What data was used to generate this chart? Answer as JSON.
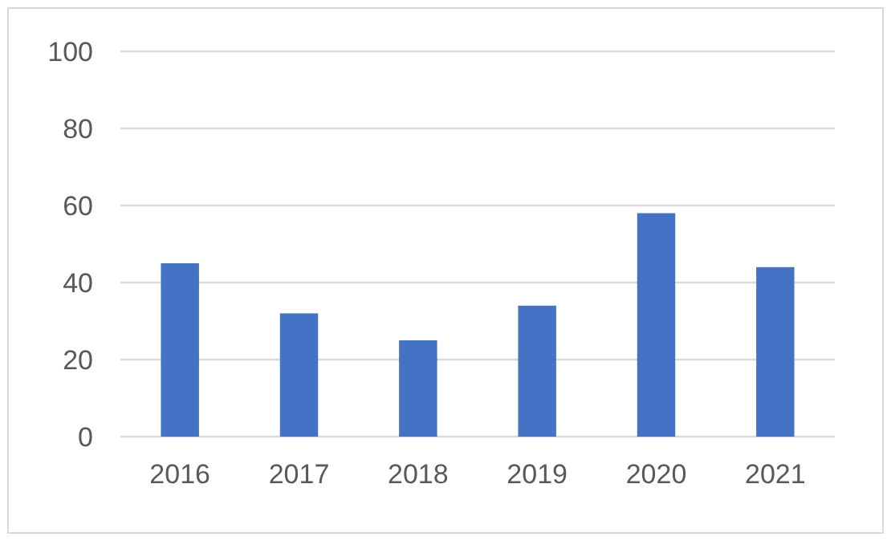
{
  "chart_data": {
    "type": "bar",
    "categories": [
      "2016",
      "2017",
      "2018",
      "2019",
      "2020",
      "2021"
    ],
    "values": [
      45,
      32,
      25,
      34,
      58,
      44
    ],
    "color": "#4472c4",
    "ylim": [
      0,
      100
    ],
    "yticks": [
      0,
      20,
      40,
      60,
      80,
      100
    ],
    "grid": "y"
  }
}
